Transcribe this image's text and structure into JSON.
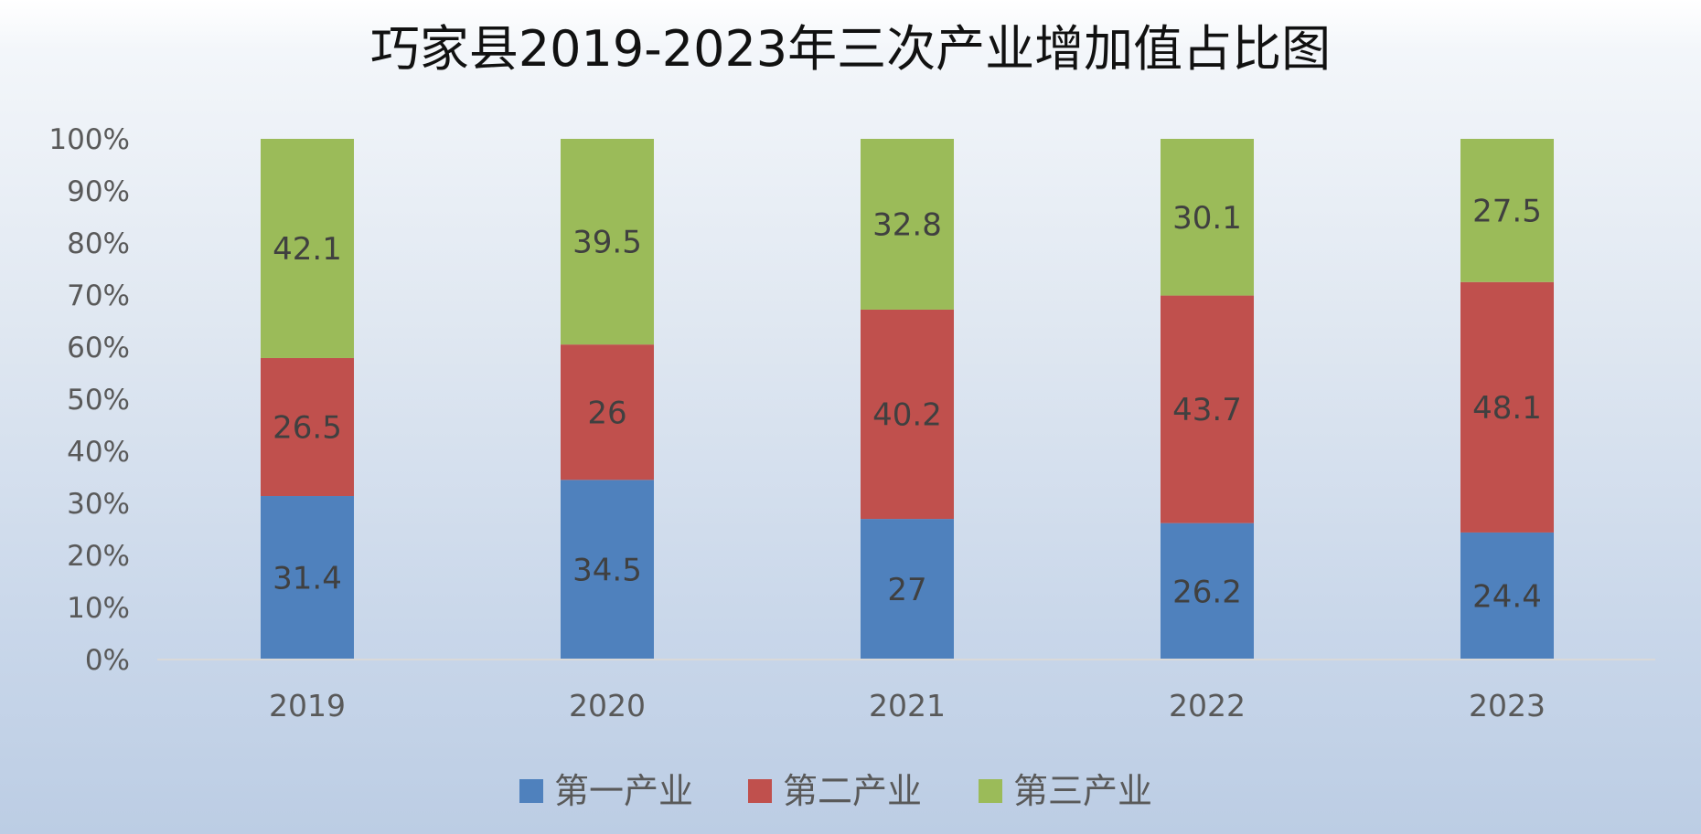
{
  "chart_data": {
    "type": "bar",
    "stacked": true,
    "percent_stacked": true,
    "title": "巧家县2019-2023年三次产业增加值占比图",
    "xlabel": "",
    "ylabel": "",
    "categories": [
      "2019",
      "2020",
      "2021",
      "2022",
      "2023"
    ],
    "y_ticks": [
      "0%",
      "10%",
      "20%",
      "30%",
      "40%",
      "50%",
      "60%",
      "70%",
      "80%",
      "90%",
      "100%"
    ],
    "ylim": [
      0,
      100
    ],
    "grid": false,
    "legend_position": "bottom",
    "series": [
      {
        "name": "第一产业",
        "color": "#4f81bd",
        "values": [
          31.4,
          34.5,
          27,
          26.2,
          24.4
        ],
        "labels": [
          "31.4",
          "34.5",
          "27",
          "26.2",
          "24.4"
        ]
      },
      {
        "name": "第二产业",
        "color": "#c0504d",
        "values": [
          26.5,
          26,
          40.2,
          43.7,
          48.1
        ],
        "labels": [
          "26.5",
          "26",
          "40.2",
          "43.7",
          "48.1"
        ]
      },
      {
        "name": "第三产业",
        "color": "#9bbb59",
        "values": [
          42.1,
          39.5,
          32.8,
          30.1,
          27.5
        ],
        "labels": [
          "42.1",
          "39.5",
          "32.8",
          "30.1",
          "27.5"
        ]
      }
    ]
  }
}
